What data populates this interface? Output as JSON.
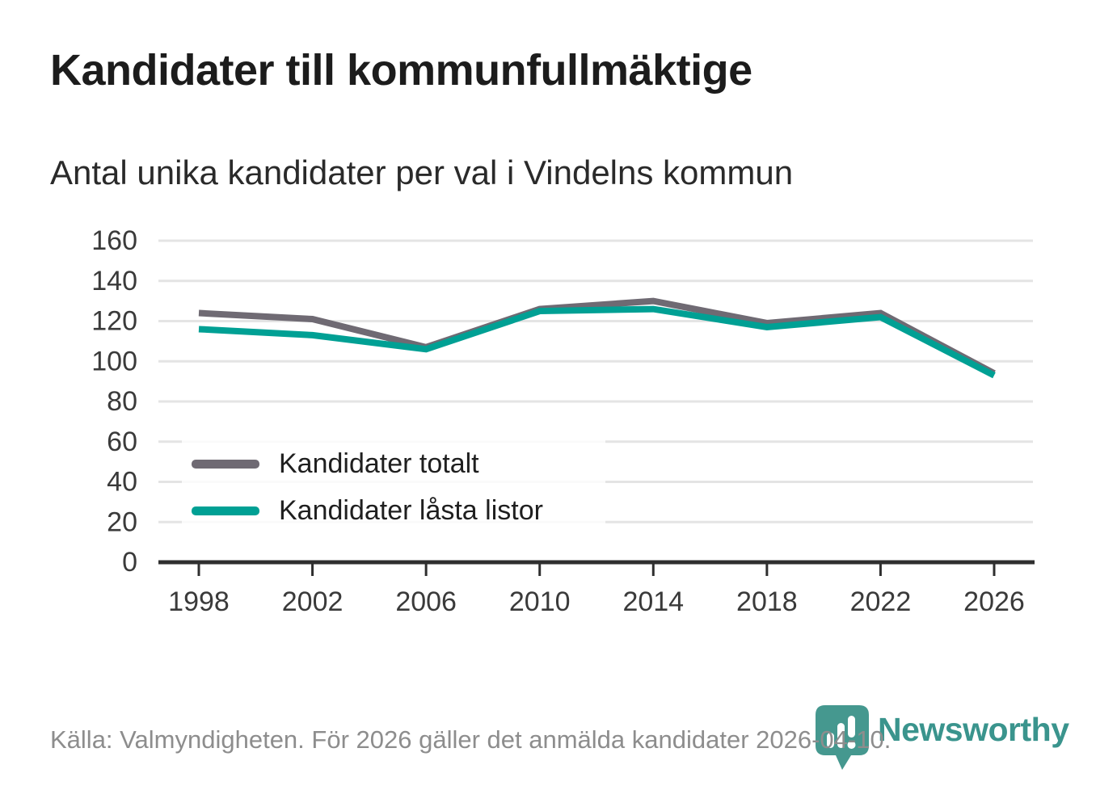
{
  "title": "Kandidater till kommunfullmäktige",
  "subtitle": "Antal unika kandidater per val i Vindelns kommun",
  "footer": {
    "source_text": "Källa: Valmyndigheten. För 2026 gäller det anmälda kandidater 2026-04-10."
  },
  "branding": {
    "logo_text": "Newsworthy",
    "logo_icon": "bar-chart-speech-bubble-icon",
    "logo_color": "#3a948d"
  },
  "colors": {
    "accent_teal": "#00a094",
    "line_gray": "#6f6a73",
    "grid": "#e4e4e4",
    "axis": "#2f2f2f",
    "title_text": "#1c1c1c",
    "muted_text": "#8d8d8d"
  },
  "chart_data": {
    "type": "line",
    "title": "Kandidater till kommunfullmäktige",
    "subtitle": "Antal unika kandidater per val i Vindelns kommun",
    "x": [
      1998,
      2002,
      2006,
      2010,
      2014,
      2018,
      2022,
      2026
    ],
    "series": [
      {
        "name": "Kandidater totalt",
        "color": "#6f6a73",
        "values": [
          124,
          121,
          107,
          126,
          130,
          119,
          124,
          94
        ]
      },
      {
        "name": "Kandidater låsta listor",
        "color": "#00a094",
        "values": [
          116,
          113,
          106,
          125,
          126,
          117,
          122,
          93
        ]
      }
    ],
    "xlabel": "",
    "ylabel": "",
    "ylim": [
      0,
      160
    ],
    "yticks": [
      0,
      20,
      40,
      60,
      80,
      100,
      120,
      140,
      160
    ],
    "grid": true,
    "legend_position": "inside-bottom-left"
  }
}
